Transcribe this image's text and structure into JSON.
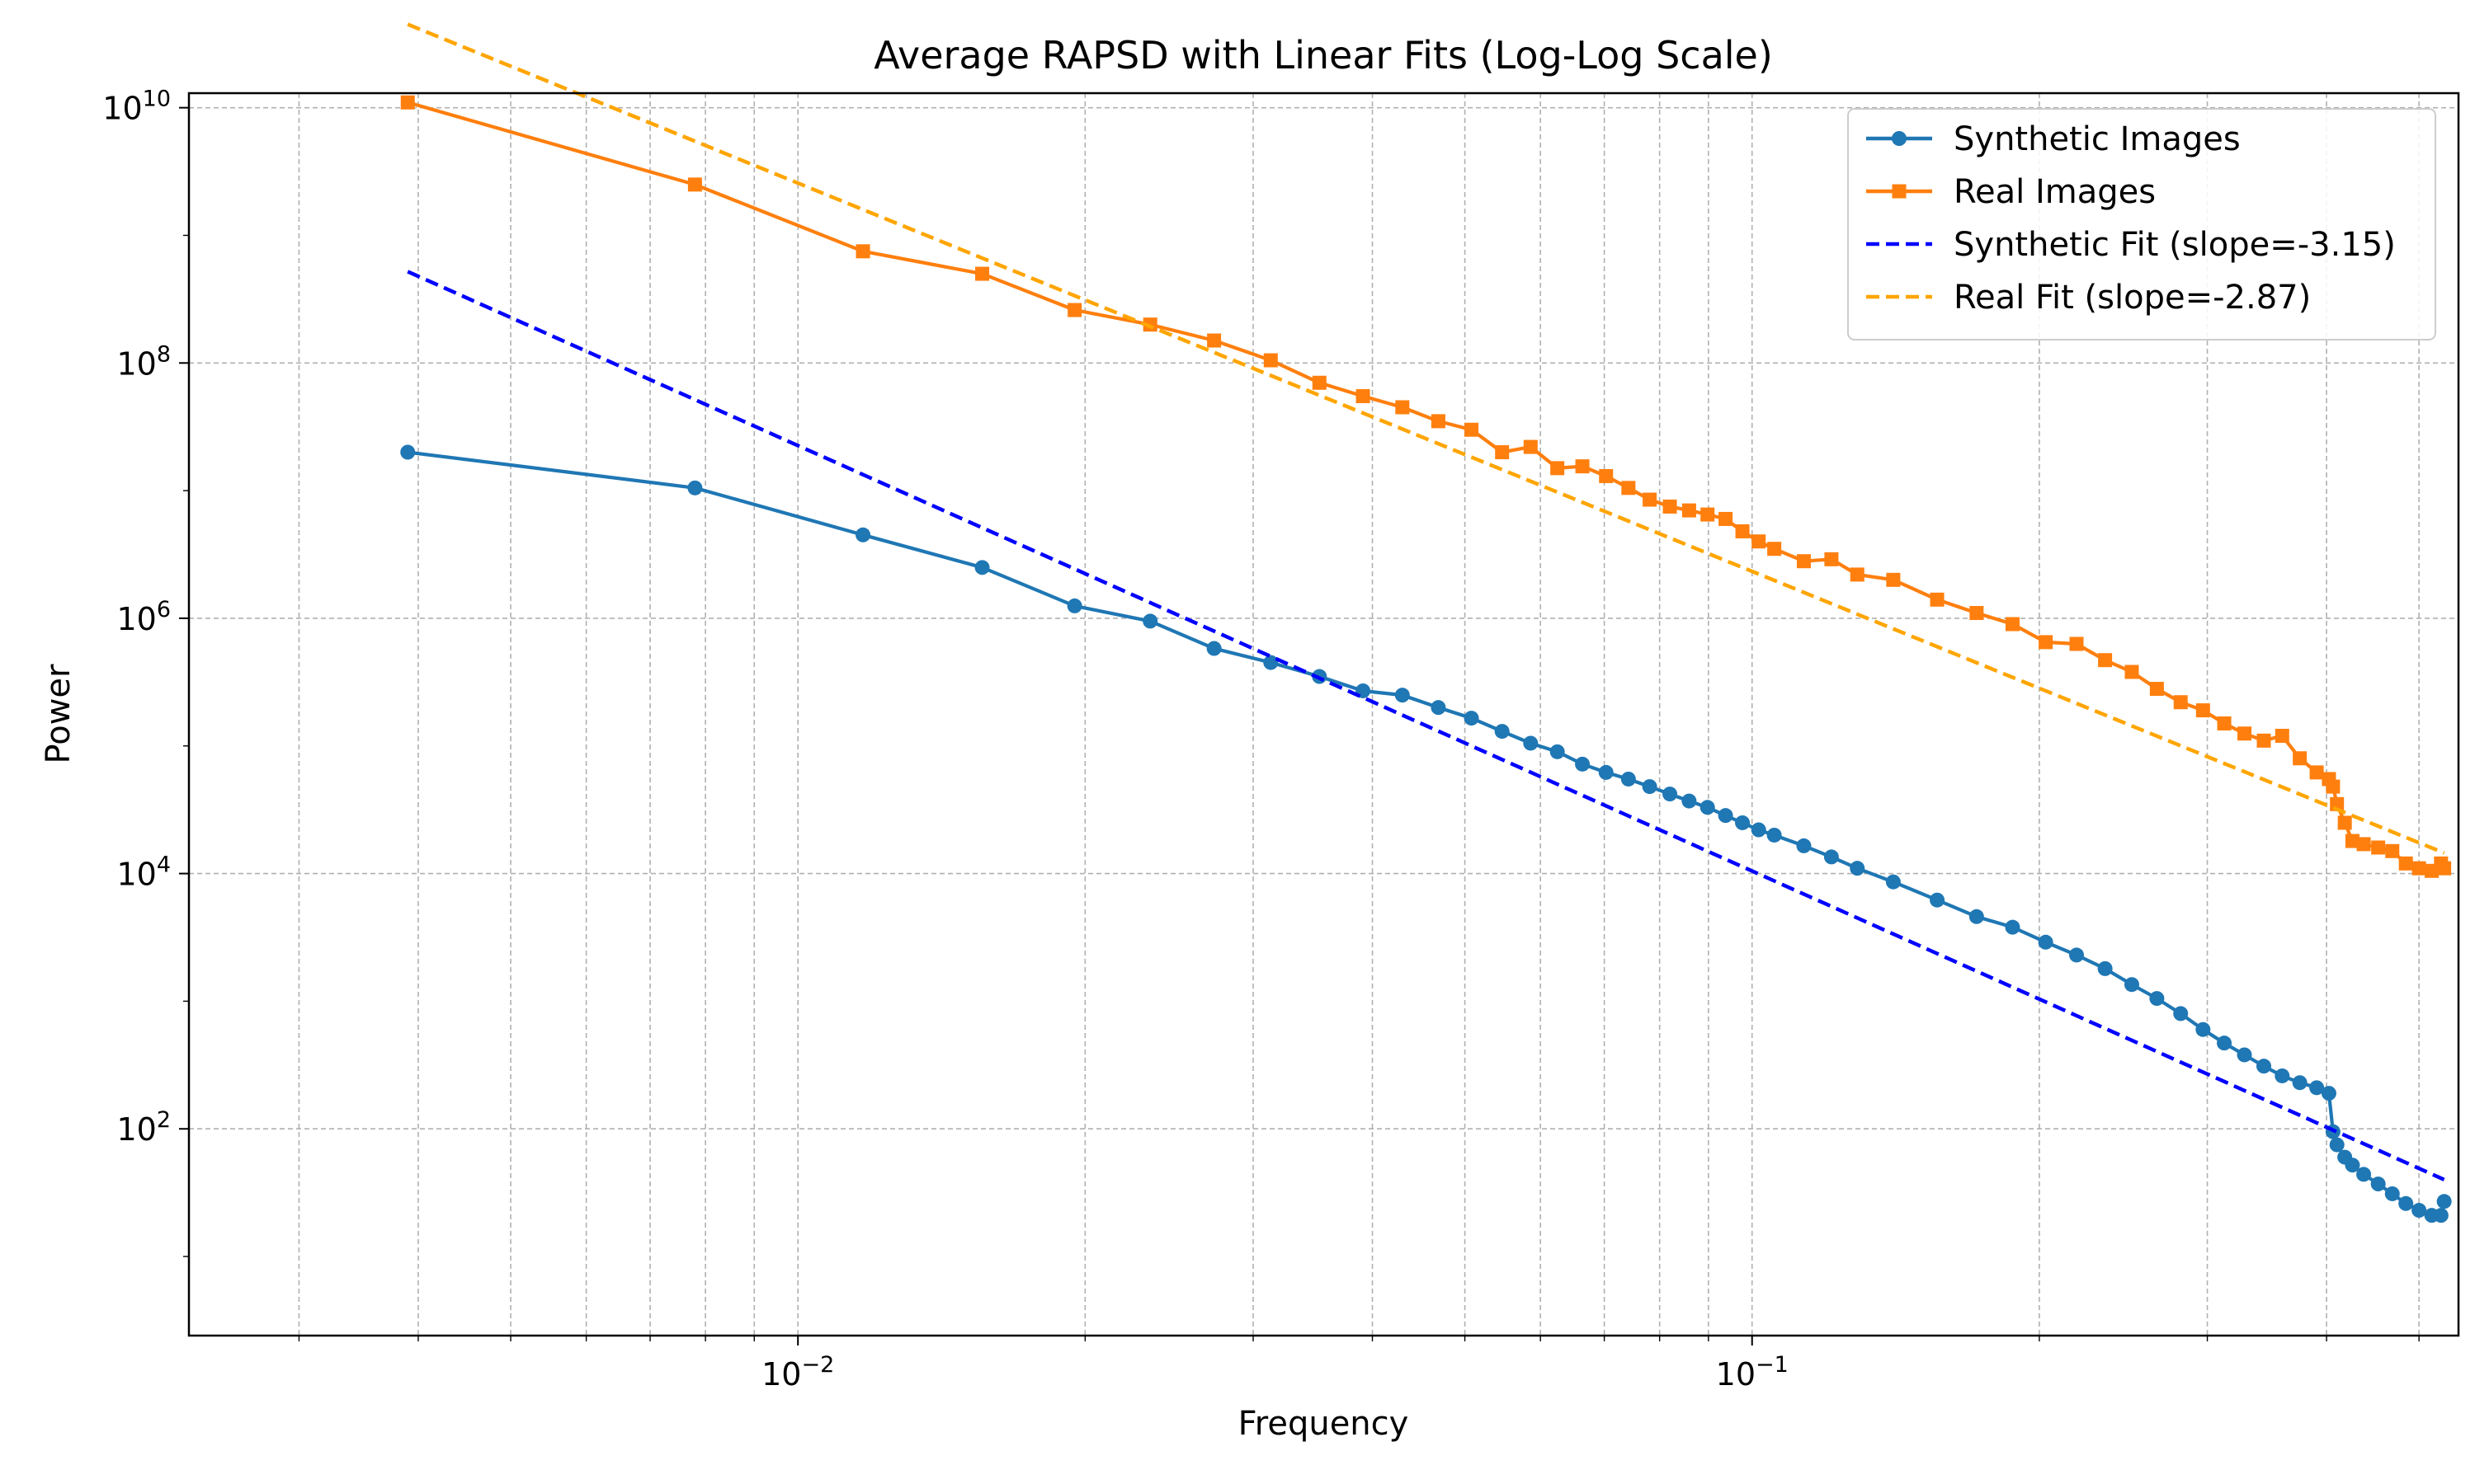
{
  "chart_data": {
    "type": "line",
    "title": "Average RAPSD with Linear Fits (Log-Log Scale)",
    "xlabel": "Frequency",
    "ylabel": "Power",
    "xscale": "log",
    "yscale": "log",
    "xlim": [
      0.0023,
      0.55
    ],
    "ylim": [
      2.4,
      13000000000
    ],
    "x_ticks": [
      {
        "value": 0.01,
        "base": "10",
        "exp": "−2"
      },
      {
        "value": 0.1,
        "base": "10",
        "exp": "−1"
      }
    ],
    "y_ticks": [
      {
        "value": 100,
        "base": "10",
        "exp": "2"
      },
      {
        "value": 10000,
        "base": "10",
        "exp": "4"
      },
      {
        "value": 1000000,
        "base": "10",
        "exp": "6"
      },
      {
        "value": 100000000,
        "base": "10",
        "exp": "8"
      },
      {
        "value": 10000000000,
        "base": "10",
        "exp": "10"
      }
    ],
    "grid": true,
    "legend_position": "top-right",
    "series": [
      {
        "name": "Synthetic Images",
        "color": "#1f77b4",
        "marker": "circle",
        "line": "solid",
        "x": [
          0.0039,
          0.0078,
          0.0117,
          0.0156,
          0.0195,
          0.0234,
          0.0273,
          0.0313,
          0.0352,
          0.0391,
          0.043,
          0.0469,
          0.0508,
          0.0547,
          0.0586,
          0.0625,
          0.0664,
          0.0703,
          0.0742,
          0.0781,
          0.082,
          0.0859,
          0.0898,
          0.0938,
          0.0977,
          0.1016,
          0.1055,
          0.1133,
          0.1211,
          0.1289,
          0.1406,
          0.1563,
          0.1719,
          0.1875,
          0.2031,
          0.2188,
          0.2344,
          0.25,
          0.2656,
          0.2813,
          0.2969,
          0.3125,
          0.3281,
          0.3438,
          0.3594,
          0.375,
          0.3906,
          0.4023,
          0.4063,
          0.4102,
          0.418,
          0.4258,
          0.4375,
          0.4531,
          0.4688,
          0.4844,
          0.5,
          0.5156,
          0.5273,
          0.5313
        ],
        "y": [
          20000000,
          10500000,
          4500000,
          2500000,
          1250000,
          950000,
          580000,
          450000,
          350000,
          270000,
          250000,
          200000,
          165000,
          130000,
          105000,
          90000,
          72000,
          62000,
          55000,
          48000,
          42000,
          37000,
          33000,
          28500,
          25000,
          22000,
          20000,
          16500,
          13500,
          11000,
          8600,
          6200,
          4600,
          3800,
          2900,
          2300,
          1800,
          1350,
          1050,
          800,
          600,
          470,
          380,
          310,
          260,
          230,
          210,
          190,
          95,
          75,
          60,
          52,
          44,
          37,
          31,
          26,
          23,
          21,
          21,
          27
        ]
      },
      {
        "name": "Real Images",
        "color": "#ff7f0e",
        "marker": "square",
        "line": "solid",
        "x": [
          0.0039,
          0.0078,
          0.0117,
          0.0156,
          0.0195,
          0.0234,
          0.0273,
          0.0313,
          0.0352,
          0.0391,
          0.043,
          0.0469,
          0.0508,
          0.0547,
          0.0586,
          0.0625,
          0.0664,
          0.0703,
          0.0742,
          0.0781,
          0.082,
          0.0859,
          0.0898,
          0.0938,
          0.0977,
          0.1016,
          0.1055,
          0.1133,
          0.1211,
          0.1289,
          0.1406,
          0.1563,
          0.1719,
          0.1875,
          0.2031,
          0.2188,
          0.2344,
          0.25,
          0.2656,
          0.2813,
          0.2969,
          0.3125,
          0.3281,
          0.3438,
          0.3594,
          0.375,
          0.3906,
          0.4023,
          0.4063,
          0.4102,
          0.418,
          0.4258,
          0.4375,
          0.4531,
          0.4688,
          0.4844,
          0.5,
          0.5156,
          0.5273,
          0.5313
        ],
        "y": [
          11000000000,
          2500000000,
          750000000,
          500000000,
          260000000,
          200000000,
          150000000,
          105000000,
          70000000,
          55000000,
          45000000,
          35000000,
          30000000,
          20000000,
          22000000,
          15000000,
          15500000,
          13000000,
          10500000,
          8500000,
          7500000,
          7000000,
          6500000,
          6000000,
          4800000,
          4000000,
          3500000,
          2800000,
          2900000,
          2200000,
          2000000,
          1400000,
          1100000,
          900000,
          650000,
          630000,
          470000,
          380000,
          280000,
          220000,
          190000,
          150000,
          125000,
          110000,
          120000,
          80000,
          62000,
          55000,
          48000,
          35000,
          25000,
          18000,
          17000,
          16000,
          15000,
          12000,
          11000,
          10500,
          12000,
          11000
        ]
      },
      {
        "name": "Synthetic Fit (slope=-3.15)",
        "color": "#0000ff",
        "marker": "none",
        "line": "dashed",
        "x": [
          0.0039,
          0.5313
        ],
        "y": [
          520000000,
          40
        ]
      },
      {
        "name": "Real Fit (slope=-2.87)",
        "color": "#ffa500",
        "marker": "none",
        "line": "dashed",
        "x": [
          0.0039,
          0.5313
        ],
        "y": [
          45000000000,
          14500
        ]
      }
    ]
  }
}
